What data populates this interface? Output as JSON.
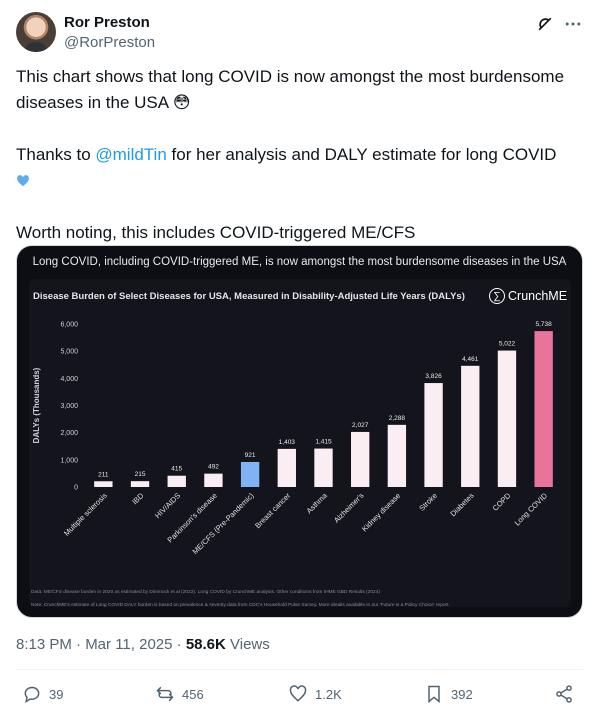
{
  "author": {
    "name": "Ror Preston",
    "handle": "@RorPreston"
  },
  "tweet": {
    "line1": "This chart shows that long COVID is now amongst the most burdensome diseases in the USA 😳",
    "line2_before": "Thanks to ",
    "line2_mention": "@mildTin",
    "line2_after": " for her analysis and DALY estimate for long COVID",
    "line3": "Worth noting, this includes COVID-triggered ME/CFS"
  },
  "media": {
    "headline": "Long COVID, including COVID-triggered ME, is now amongst the most burdensome diseases in the USA",
    "brand": "CrunchME",
    "brand_symbol": "∑",
    "footnote1": "Data: ME/CFS disease burden in 2020 as estimated by Dimmock et al (2022). Long COVID by CrunchME analysis. Other conditions from IHME GBD Results (2024)",
    "footnote2": "Note: CrunchME's estimate of Long COVID DALY burden is based on prevalence & severity data from CDC's Household Pulse Survey. More details available in our 'Future is a Policy Choice' report."
  },
  "chart_data": {
    "type": "bar",
    "title": "Disease Burden of Select Diseases for USA, Measured in Disability-Adjusted Life Years (DALYs)",
    "ylabel": "DALYs (Thousands)",
    "xlabel": "",
    "ylim": [
      0,
      6000
    ],
    "yticks": [
      "0",
      "1,000",
      "2,000",
      "3,000",
      "4,000",
      "5,000",
      "6,000"
    ],
    "categories": [
      "Multiple sclerosis",
      "IBD",
      "HIV/AIDS",
      "Parkinson's disease",
      "ME/CFS (Pre-Pandemic)",
      "Breast cancer",
      "Asthma",
      "Alzheimer's",
      "Kidney disease",
      "Stroke",
      "Diabetes",
      "COPD",
      "Long COVID"
    ],
    "values": [
      211,
      215,
      415,
      492,
      921,
      1403,
      1415,
      2027,
      2288,
      3826,
      4461,
      5022,
      5738
    ],
    "value_labels": [
      "211",
      "215",
      "415",
      "492",
      "921",
      "1,403",
      "1,415",
      "2,027",
      "2,288",
      "3,826",
      "4,461",
      "5,022",
      "5,738"
    ],
    "colors": {
      "default": "#fbeef2",
      "ME/CFS (Pre-Pandemic)": "#7fb3f5",
      "Long COVID": "#e8749c"
    },
    "grid": false,
    "legend": "none"
  },
  "footer": {
    "time": "8:13 PM · Mar 11, 2025 · ",
    "views_count": "58.6K",
    "views_label": " Views"
  },
  "actions": {
    "replies": "39",
    "reposts": "456",
    "likes": "1.2K",
    "bookmarks": "392"
  },
  "icons": [
    "grok-icon",
    "more-icon",
    "reply-icon",
    "repost-icon",
    "like-icon",
    "bookmark-icon",
    "share-icon"
  ]
}
